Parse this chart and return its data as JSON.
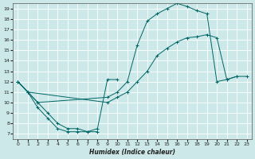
{
  "xlabel": "Humidex (Indice chaleur)",
  "bg_color": "#cce8e8",
  "grid_color": "#ffffff",
  "line_color": "#006666",
  "xlim": [
    -0.5,
    23.5
  ],
  "ylim": [
    6.5,
    19.5
  ],
  "xticks": [
    0,
    1,
    2,
    3,
    4,
    5,
    6,
    7,
    8,
    9,
    10,
    11,
    12,
    13,
    14,
    15,
    16,
    17,
    18,
    19,
    20,
    21,
    22,
    23
  ],
  "yticks": [
    7,
    8,
    9,
    10,
    11,
    12,
    13,
    14,
    15,
    16,
    17,
    18,
    19
  ],
  "curve1_x": [
    0,
    1,
    2,
    3,
    4,
    5,
    6,
    7,
    8
  ],
  "curve1_y": [
    12,
    11,
    9.5,
    8.5,
    7.5,
    7.2,
    7.2,
    7.2,
    7.2
  ],
  "curve2_x": [
    0,
    2,
    3,
    4,
    5,
    6,
    7,
    8,
    9,
    10
  ],
  "curve2_y": [
    12,
    10,
    9,
    8,
    7.5,
    7.5,
    7.2,
    7.5,
    12.2,
    12.2
  ],
  "curve3_x": [
    0,
    1,
    2,
    9,
    10,
    11,
    12,
    13,
    14,
    15,
    16,
    17,
    18,
    19,
    20,
    21,
    22
  ],
  "curve3_y": [
    12,
    11,
    10,
    10.5,
    11,
    12,
    15.5,
    17.8,
    18.5,
    19.0,
    19.5,
    19.2,
    18.8,
    18.5,
    12.0,
    12.2,
    12.5
  ],
  "curve4_x": [
    0,
    1,
    9,
    10,
    11,
    12,
    13,
    14,
    15,
    16,
    17,
    18,
    19,
    20,
    21,
    22,
    23
  ],
  "curve4_y": [
    12,
    11,
    10,
    10.5,
    11,
    12,
    13,
    14.5,
    15.2,
    15.8,
    16.2,
    16.3,
    16.5,
    16.2,
    12.2,
    12.5,
    12.5
  ]
}
